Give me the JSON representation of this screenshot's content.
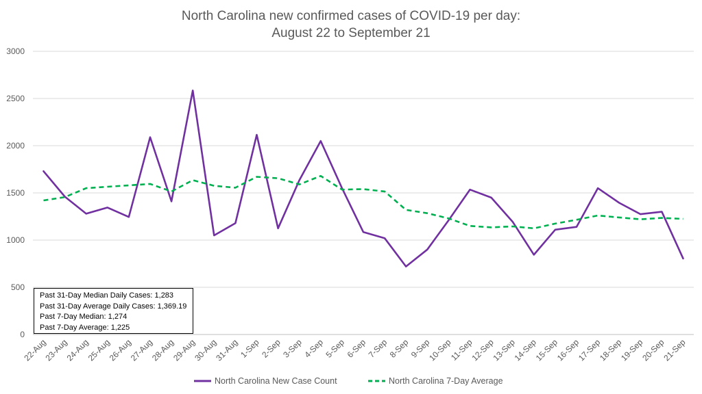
{
  "chart_data": {
    "type": "line",
    "title_lines": [
      "North Carolina new confirmed cases of COVID-19 per day:",
      "August 22 to September 21"
    ],
    "categories": [
      "22-Aug",
      "23-Aug",
      "24-Aug",
      "25-Aug",
      "26-Aug",
      "27-Aug",
      "28-Aug",
      "29-Aug",
      "30-Aug",
      "31-Aug",
      "1-Sep",
      "2-Sep",
      "3-Sep",
      "4-Sep",
      "5-Sep",
      "6-Sep",
      "7-Sep",
      "8-Sep",
      "9-Sep",
      "10-Sep",
      "11-Sep",
      "12-Sep",
      "13-Sep",
      "14-Sep",
      "15-Sep",
      "16-Sep",
      "17-Sep",
      "18-Sep",
      "19-Sep",
      "20-Sep",
      "21-Sep"
    ],
    "yticks": [
      "0",
      "500",
      "1000",
      "1500",
      "2000",
      "2500",
      "3000"
    ],
    "ylim": [
      0,
      3000
    ],
    "grid": true,
    "legend_position": "bottom",
    "series": [
      {
        "name": "North Carolina New Case Count",
        "color": "#7030A0",
        "style": "solid",
        "values": [
          1730,
          1460,
          1280,
          1345,
          1245,
          2090,
          1410,
          2585,
          1050,
          1180,
          2115,
          1125,
          1635,
          2050,
          1550,
          1085,
          1020,
          720,
          900,
          1210,
          1535,
          1450,
          1195,
          845,
          1110,
          1140,
          1550,
          1395,
          1275,
          1300,
          805
        ]
      },
      {
        "name": "North Carolina 7-Day Average",
        "color": "#00B050",
        "style": "dashed",
        "values": [
          1420,
          1455,
          1550,
          1565,
          1580,
          1595,
          1515,
          1635,
          1575,
          1555,
          1670,
          1655,
          1590,
          1680,
          1535,
          1540,
          1515,
          1320,
          1285,
          1230,
          1150,
          1135,
          1145,
          1125,
          1175,
          1215,
          1260,
          1240,
          1220,
          1235,
          1225
        ]
      }
    ],
    "annotation_lines": [
      "Past 31-Day Median Daily Cases: 1,283",
      "Past 31-Day Average Daily Cases: 1,369.19",
      "Past 7-Day Median: 1,274",
      "Past 7-Day Average: 1,225"
    ]
  }
}
